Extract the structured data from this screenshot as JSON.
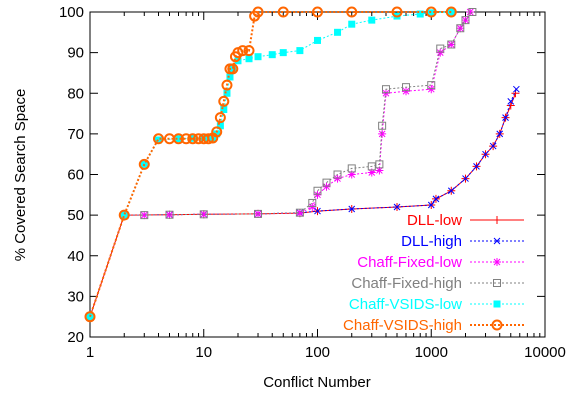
{
  "chart_data": {
    "type": "line",
    "title": "",
    "xlabel": "Conflict Number",
    "ylabel": "% Covered Search Space",
    "xscale": "log",
    "xlim": [
      1,
      10000
    ],
    "ylim": [
      20,
      100
    ],
    "x_ticks": [
      1,
      10,
      100,
      1000,
      10000
    ],
    "x_tick_labels": [
      "1",
      "10",
      "100",
      "1000",
      "10000"
    ],
    "y_ticks": [
      20,
      30,
      40,
      50,
      60,
      70,
      80,
      90,
      100
    ],
    "y_tick_labels": [
      "20",
      "30",
      "40",
      "50",
      "60",
      "70",
      "80",
      "90",
      "100"
    ],
    "grid": false,
    "legend_position": "bottom-right",
    "series": [
      {
        "name": "DLL-low",
        "color": "#ff0000",
        "marker": "plus",
        "x": [
          1,
          2,
          5,
          10,
          30,
          70,
          100,
          200,
          500,
          1000,
          1100,
          1500,
          2000,
          2500,
          3000,
          3500,
          4000,
          4500,
          5000,
          5500
        ],
        "y": [
          25,
          50,
          50.1,
          50.2,
          50.3,
          50.5,
          51,
          51.5,
          52,
          52.5,
          54,
          56,
          59,
          62,
          65,
          67,
          70,
          74,
          77,
          80
        ]
      },
      {
        "name": "DLL-high",
        "color": "#0000ff",
        "marker": "x",
        "x": [
          1,
          2,
          5,
          10,
          30,
          70,
          100,
          200,
          500,
          1000,
          1100,
          1500,
          2000,
          2500,
          3000,
          3500,
          4000,
          4500,
          5000,
          5600
        ],
        "y": [
          25,
          50,
          50.1,
          50.2,
          50.3,
          50.6,
          51,
          51.5,
          52,
          52.5,
          54,
          56,
          59,
          62,
          65,
          67,
          70,
          74,
          78,
          81
        ]
      },
      {
        "name": "Chaff-Fixed-low",
        "color": "#ff00ff",
        "marker": "star",
        "x": [
          1,
          2,
          3,
          5,
          10,
          30,
          70,
          90,
          100,
          120,
          150,
          200,
          300,
          350,
          370,
          400,
          600,
          1000,
          1200,
          1500,
          1800,
          2000,
          2200
        ],
        "y": [
          25,
          50,
          50,
          50.1,
          50.2,
          50.3,
          50.5,
          52,
          55,
          57,
          59,
          60,
          60.5,
          61,
          70,
          80,
          80.5,
          81,
          90,
          92,
          96,
          98,
          100
        ]
      },
      {
        "name": "Chaff-Fixed-high",
        "color": "#808080",
        "marker": "square-open",
        "x": [
          1,
          2,
          3,
          5,
          10,
          30,
          70,
          90,
          100,
          120,
          150,
          200,
          300,
          350,
          370,
          400,
          600,
          1000,
          1200,
          1500,
          1800,
          2000,
          2300
        ],
        "y": [
          25,
          50,
          50,
          50.1,
          50.2,
          50.3,
          50.6,
          53,
          56,
          58,
          60,
          61.5,
          62,
          62.5,
          72,
          81,
          81.5,
          82,
          91,
          92,
          96,
          98,
          100
        ]
      },
      {
        "name": "Chaff-VSIDS-low",
        "color": "#00ffff",
        "marker": "square-filled",
        "x": [
          1,
          2,
          3,
          4,
          6,
          8,
          10,
          12,
          13,
          14,
          15,
          16,
          17,
          18,
          20,
          25,
          30,
          40,
          50,
          70,
          100,
          150,
          200,
          300,
          500,
          800,
          1000,
          1500
        ],
        "y": [
          25,
          50,
          62.5,
          68.5,
          68.8,
          68.9,
          69,
          69,
          70,
          72,
          76,
          80,
          84,
          86,
          88,
          88.5,
          89,
          89.5,
          90,
          90.5,
          93,
          95,
          97,
          98,
          99,
          99.5,
          99.8,
          100
        ]
      },
      {
        "name": "Chaff-VSIDS-high",
        "color": "#ff6600",
        "marker": "circle-open",
        "x": [
          1,
          2,
          3,
          4,
          5,
          6,
          7,
          8,
          9,
          10,
          11,
          12,
          13,
          14,
          15,
          16,
          17,
          18,
          19,
          20,
          22,
          25,
          28,
          30,
          50,
          100,
          200,
          500,
          1000,
          1500
        ],
        "y": [
          25,
          50,
          62.5,
          68.8,
          68.8,
          68.8,
          68.8,
          68.8,
          68.8,
          68.8,
          68.8,
          69,
          70.5,
          74,
          78,
          82,
          86,
          86,
          89,
          90,
          90.5,
          90.5,
          99,
          100,
          100,
          100,
          100,
          100,
          100,
          100
        ]
      }
    ]
  }
}
